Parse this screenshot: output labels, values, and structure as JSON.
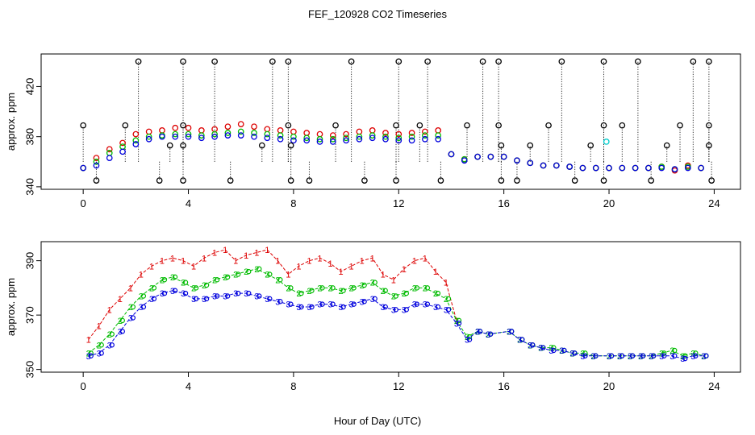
{
  "title": "FEF_120928  CO2 Timeseries",
  "xlabel": "Hour of Day (UTC)",
  "chart_data": [
    {
      "type": "scatter",
      "ylabel": "approx. ppm",
      "xlim": [
        -1.6,
        25.0
      ],
      "ylim": [
        338,
        446
      ],
      "x_ticks": [
        0,
        4,
        8,
        12,
        16,
        20,
        24
      ],
      "y_ticks": [
        340,
        380,
        420
      ],
      "colors": {
        "series1": "#dd0000",
        "series2": "#00bb00",
        "series3": "#0000dd",
        "spikes": "#000000",
        "cyan": "#00cccc"
      },
      "spike_points": [
        {
          "x": 0.0,
          "y": 389
        },
        {
          "x": 0.5,
          "y": 345
        },
        {
          "x": 1.6,
          "y": 389
        },
        {
          "x": 2.1,
          "y": 440
        },
        {
          "x": 2.9,
          "y": 345
        },
        {
          "x": 3.3,
          "y": 373
        },
        {
          "x": 3.8,
          "y": 440
        },
        {
          "x": 3.8,
          "y": 389
        },
        {
          "x": 3.8,
          "y": 345
        },
        {
          "x": 3.8,
          "y": 373
        },
        {
          "x": 5.0,
          "y": 440
        },
        {
          "x": 5.6,
          "y": 345
        },
        {
          "x": 6.8,
          "y": 373
        },
        {
          "x": 7.2,
          "y": 440
        },
        {
          "x": 7.8,
          "y": 440
        },
        {
          "x": 7.8,
          "y": 389
        },
        {
          "x": 7.9,
          "y": 345
        },
        {
          "x": 7.9,
          "y": 373
        },
        {
          "x": 8.6,
          "y": 345
        },
        {
          "x": 9.6,
          "y": 389
        },
        {
          "x": 10.2,
          "y": 440
        },
        {
          "x": 10.7,
          "y": 345
        },
        {
          "x": 11.9,
          "y": 389
        },
        {
          "x": 11.9,
          "y": 345
        },
        {
          "x": 12.0,
          "y": 440
        },
        {
          "x": 12.8,
          "y": 389
        },
        {
          "x": 13.1,
          "y": 440
        },
        {
          "x": 13.6,
          "y": 345
        },
        {
          "x": 14.6,
          "y": 389
        },
        {
          "x": 15.2,
          "y": 440
        },
        {
          "x": 15.8,
          "y": 440
        },
        {
          "x": 15.8,
          "y": 389
        },
        {
          "x": 15.9,
          "y": 345
        },
        {
          "x": 15.9,
          "y": 373
        },
        {
          "x": 16.5,
          "y": 345
        },
        {
          "x": 17.0,
          "y": 373
        },
        {
          "x": 17.7,
          "y": 389
        },
        {
          "x": 18.2,
          "y": 440
        },
        {
          "x": 18.7,
          "y": 345
        },
        {
          "x": 19.3,
          "y": 373
        },
        {
          "x": 19.8,
          "y": 440
        },
        {
          "x": 19.8,
          "y": 389
        },
        {
          "x": 19.8,
          "y": 345
        },
        {
          "x": 20.5,
          "y": 389
        },
        {
          "x": 21.1,
          "y": 440
        },
        {
          "x": 21.6,
          "y": 345
        },
        {
          "x": 22.2,
          "y": 373
        },
        {
          "x": 22.7,
          "y": 389
        },
        {
          "x": 23.2,
          "y": 440
        },
        {
          "x": 23.8,
          "y": 440
        },
        {
          "x": 23.8,
          "y": 389
        },
        {
          "x": 23.8,
          "y": 373
        },
        {
          "x": 23.9,
          "y": 345
        }
      ],
      "cyan_points": [
        {
          "x": 19.9,
          "y": 376
        }
      ],
      "series": [
        {
          "x": [
            0.0,
            0.5,
            1.0,
            1.5,
            2.0,
            2.5,
            3.0,
            3.5,
            4.0,
            4.5,
            5.0,
            5.5,
            6.0,
            6.5,
            7.0,
            7.5,
            8.0,
            8.5,
            9.0,
            9.5,
            10.0,
            10.5,
            11.0,
            11.5,
            12.0,
            12.5,
            13.0,
            13.5,
            14.0,
            14.5,
            15.0,
            15.5,
            16.0,
            16.5,
            17.0,
            17.5,
            18.0,
            18.5,
            19.0,
            19.5,
            20.0,
            20.5,
            21.0,
            21.5,
            22.0,
            22.5,
            23.0,
            23.5
          ],
          "y": [
            355,
            363,
            370,
            375,
            382,
            384,
            385,
            387,
            387,
            385,
            386,
            388,
            390,
            388,
            386,
            385,
            384,
            383,
            382,
            381,
            382,
            384,
            385,
            383,
            382,
            383,
            384,
            385,
            366,
            362,
            364,
            364,
            364,
            361,
            359,
            357,
            357,
            356,
            355,
            355,
            355,
            355,
            355,
            355,
            356,
            353,
            357,
            355
          ]
        },
        {
          "x": [
            0.0,
            0.5,
            1.0,
            1.5,
            2.0,
            2.5,
            3.0,
            3.5,
            4.0,
            4.5,
            5.0,
            5.5,
            6.0,
            6.5,
            7.0,
            7.5,
            8.0,
            8.5,
            9.0,
            9.5,
            10.0,
            10.5,
            11.0,
            11.5,
            12.0,
            12.5,
            13.0,
            13.5,
            14.0,
            14.5,
            15.0,
            15.5,
            16.0,
            16.5,
            17.0,
            17.5,
            18.0,
            18.5,
            19.0,
            19.5,
            20.0,
            20.5,
            21.0,
            21.5,
            22.0,
            22.5,
            23.0,
            23.5
          ],
          "y": [
            355,
            360,
            367,
            372,
            377,
            380,
            381,
            382,
            382,
            381,
            382,
            383,
            384,
            383,
            382,
            381,
            380,
            379,
            378,
            378,
            379,
            380,
            381,
            380,
            379,
            380,
            381,
            381,
            366,
            362,
            364,
            364,
            364,
            361,
            359,
            357,
            357,
            356,
            355,
            355,
            355,
            355,
            355,
            355,
            356,
            354,
            356,
            355
          ]
        },
        {
          "x": [
            0.0,
            0.5,
            1.0,
            1.5,
            2.0,
            2.5,
            3.0,
            3.5,
            4.0,
            4.5,
            5.0,
            5.5,
            6.0,
            6.5,
            7.0,
            7.5,
            8.0,
            8.5,
            9.0,
            9.5,
            10.0,
            10.5,
            11.0,
            11.5,
            12.0,
            12.5,
            13.0,
            13.5,
            14.0,
            14.5,
            15.0,
            15.5,
            16.0,
            16.5,
            17.0,
            17.5,
            18.0,
            18.5,
            19.0,
            19.5,
            20.0,
            20.5,
            21.0,
            21.5,
            22.0,
            22.5,
            23.0,
            23.5
          ],
          "y": [
            355,
            357,
            363,
            368,
            374,
            378,
            380,
            380,
            380,
            379,
            380,
            381,
            381,
            380,
            379,
            378,
            377,
            377,
            376,
            376,
            377,
            378,
            379,
            378,
            377,
            377,
            378,
            378,
            366,
            361,
            364,
            364,
            364,
            361,
            359,
            357,
            357,
            356,
            355,
            355,
            355,
            355,
            355,
            355,
            355,
            354,
            355,
            355
          ]
        }
      ]
    },
    {
      "type": "scatter",
      "ylabel": "approx. ppm",
      "xlim": [
        -1.6,
        25.0
      ],
      "ylim": [
        349,
        397
      ],
      "x_ticks": [
        0,
        4,
        8,
        12,
        16,
        20,
        24
      ],
      "y_ticks": [
        350,
        370,
        390
      ],
      "colors": {
        "series1": "#dd0000",
        "series2": "#00bb00",
        "series3": "#0000dd"
      },
      "series": [
        {
          "marker": "1",
          "x": [
            0.2,
            0.6,
            1.0,
            1.4,
            1.8,
            2.2,
            2.6,
            3.0,
            3.4,
            3.8,
            4.2,
            4.6,
            5.0,
            5.4,
            5.8,
            6.2,
            6.6,
            7.0,
            7.4,
            7.8,
            8.2,
            8.6,
            9.0,
            9.4,
            9.8,
            10.2,
            10.6,
            11.0,
            11.4,
            11.8,
            12.2,
            12.6,
            13.0,
            13.4,
            13.8,
            14.2
          ],
          "y": [
            361,
            366,
            372,
            376,
            380,
            385,
            388,
            390,
            391,
            390,
            388,
            391,
            393,
            394,
            390,
            392,
            393,
            394,
            390,
            385,
            388,
            390,
            391,
            389,
            386,
            388,
            390,
            391,
            385,
            383,
            387,
            390,
            391,
            386,
            382,
            368
          ]
        },
        {
          "marker": "2",
          "x": [
            0.2,
            0.6,
            1.0,
            1.4,
            1.8,
            2.2,
            2.6,
            3.0,
            3.4,
            3.8,
            4.2,
            4.6,
            5.0,
            5.4,
            5.8,
            6.2,
            6.6,
            7.0,
            7.4,
            7.8,
            8.2,
            8.6,
            9.0,
            9.4,
            9.8,
            10.2,
            10.6,
            11.0,
            11.4,
            11.8,
            12.2,
            12.6,
            13.0,
            13.4,
            13.8,
            14.2,
            14.6,
            15.0,
            15.4,
            16.2,
            16.6,
            17.0,
            17.4,
            17.8,
            18.2,
            18.6,
            19.0,
            19.4,
            20.0,
            20.4,
            20.8,
            21.2,
            21.6,
            22.0,
            22.4,
            22.8,
            23.2,
            23.6
          ],
          "y": [
            356,
            359,
            363,
            368,
            373,
            377,
            380,
            383,
            384,
            382,
            380,
            381,
            383,
            384,
            385,
            386,
            387,
            385,
            383,
            380,
            378,
            379,
            380,
            380,
            379,
            380,
            381,
            382,
            379,
            377,
            378,
            380,
            380,
            378,
            376,
            368,
            362,
            364,
            363,
            364,
            361,
            359,
            358,
            358,
            357,
            356,
            356,
            355,
            355,
            355,
            355,
            355,
            355,
            356,
            357,
            355,
            356,
            355
          ]
        },
        {
          "marker": "3",
          "x": [
            0.2,
            0.6,
            1.0,
            1.4,
            1.8,
            2.2,
            2.6,
            3.0,
            3.4,
            3.8,
            4.2,
            4.6,
            5.0,
            5.4,
            5.8,
            6.2,
            6.6,
            7.0,
            7.4,
            7.8,
            8.2,
            8.6,
            9.0,
            9.4,
            9.8,
            10.2,
            10.6,
            11.0,
            11.4,
            11.8,
            12.2,
            12.6,
            13.0,
            13.4,
            13.8,
            14.2,
            14.6,
            15.0,
            15.4,
            16.2,
            16.6,
            17.0,
            17.4,
            17.8,
            18.2,
            18.6,
            19.0,
            19.4,
            20.0,
            20.4,
            20.8,
            21.2,
            21.6,
            22.0,
            22.4,
            22.8,
            23.2,
            23.6
          ],
          "y": [
            355,
            356,
            359,
            364,
            369,
            373,
            376,
            378,
            379,
            378,
            376,
            376,
            377,
            377,
            378,
            378,
            377,
            376,
            375,
            374,
            373,
            373,
            374,
            374,
            373,
            374,
            375,
            376,
            373,
            372,
            372,
            374,
            374,
            373,
            372,
            367,
            361,
            364,
            363,
            364,
            361,
            359,
            358,
            357,
            357,
            356,
            355,
            355,
            355,
            355,
            355,
            355,
            355,
            355,
            355,
            354,
            355,
            355
          ]
        }
      ]
    }
  ]
}
